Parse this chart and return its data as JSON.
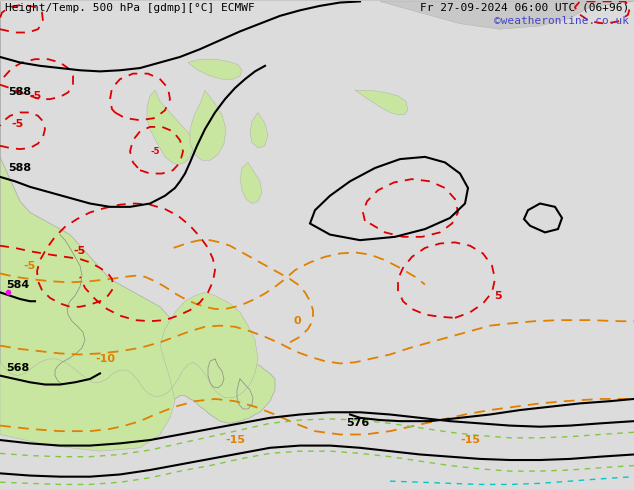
{
  "title_left": "Height/Temp. 500 hPa [gdmp][°C] ECMWF",
  "title_right": "Fr 27-09-2024 06:00 UTC (06+96)",
  "credit": "©weatheronline.co.uk",
  "bg_color": "#d0d0d0",
  "land_green_color": "#c8e6a0",
  "land_gray_color": "#c8c8c8",
  "sea_color": "#e8e8e8",
  "black_contour_color": "#000000",
  "red_dashed_color": "#dd0000",
  "orange_dashed_color": "#e08000",
  "green_dashed_color": "#80c000",
  "cyan_dashed_color": "#00c0c0",
  "label_568": "568",
  "label_576": "576",
  "label_584": "584",
  "label_588_1": "588",
  "label_588_2": "588",
  "label_neg15_1": "-15",
  "label_neg15_2": "-15",
  "label_neg10": "-10",
  "label_neg5_1": "-5",
  "label_neg5_2": "-5",
  "label_0": "0",
  "label_5_1": "5",
  "label_5_2": "5",
  "font_size_label": 8,
  "font_size_title": 8,
  "font_size_credit": 8
}
